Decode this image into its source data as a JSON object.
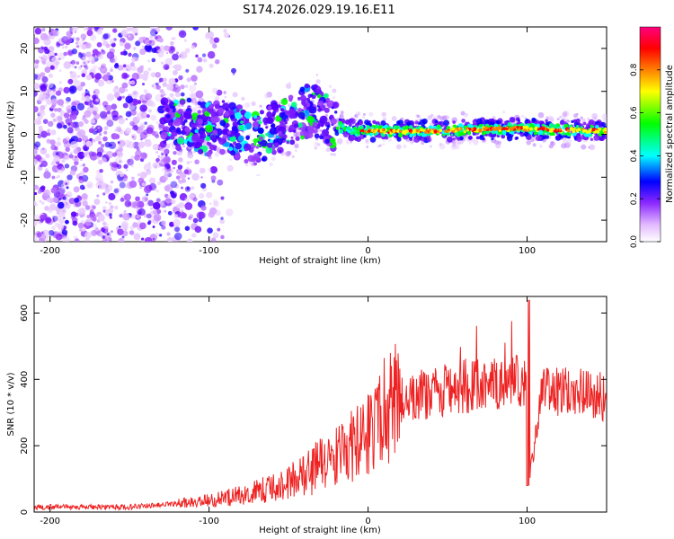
{
  "title": "S174.2026.029.19.16.E11",
  "chart_data": [
    {
      "type": "heatmap",
      "name": "spectrogram",
      "xlabel": "Height of straight line (km)",
      "ylabel": "Frequency (Hz)",
      "xlim": [
        -210,
        150
      ],
      "ylim": [
        -25,
        25
      ],
      "xticks": [
        -200,
        -100,
        0,
        100
      ],
      "yticks": [
        -20,
        -10,
        0,
        10,
        20
      ],
      "colorbar": {
        "label": "Normalized spectral amplitude",
        "range": [
          0,
          1
        ],
        "ticks": [
          0.0,
          0.2,
          0.4,
          0.6,
          0.8
        ],
        "tick_labels": [
          "0.0",
          "0.2",
          "0.4",
          "0.6",
          "0.8"
        ],
        "colors": [
          "#ffffff",
          "#e2b9ff",
          "#8c28ff",
          "#0000ff",
          "#00ffff",
          "#00ff00",
          "#ffff00",
          "#ff8000",
          "#ff0000",
          "#ff0080"
        ]
      },
      "ridge": {
        "x": [
          -130,
          -110,
          -100,
          -90,
          -80,
          -70,
          -60,
          -50,
          -40,
          -35,
          -30,
          -20,
          -10,
          0,
          20,
          40,
          60,
          80,
          100,
          120,
          150
        ],
        "y": [
          3,
          2,
          1,
          2,
          0,
          -1,
          1,
          3,
          5,
          6,
          4,
          2,
          1,
          0.8,
          0.7,
          0.8,
          1,
          1.2,
          1.3,
          1,
          0.8
        ]
      }
    },
    {
      "type": "line",
      "name": "snr",
      "xlabel": "Height of straight line (km)",
      "ylabel": "SNR (10 * v/v)",
      "xlim": [
        -210,
        150
      ],
      "ylim": [
        0,
        650
      ],
      "xticks": [
        -200,
        -100,
        0,
        100
      ],
      "yticks": [
        0,
        200,
        400,
        600
      ],
      "color": "#ee2222",
      "envelope": {
        "x": [
          -210,
          -150,
          -120,
          -100,
          -80,
          -60,
          -40,
          -30,
          -20,
          -10,
          0,
          10,
          20,
          40,
          60,
          80,
          90,
          100,
          101,
          110,
          130,
          150
        ],
        "y": [
          15,
          15,
          25,
          35,
          50,
          75,
          110,
          140,
          170,
          200,
          250,
          300,
          340,
          360,
          380,
          390,
          395,
          390,
          80,
          370,
          360,
          350
        ]
      }
    }
  ]
}
